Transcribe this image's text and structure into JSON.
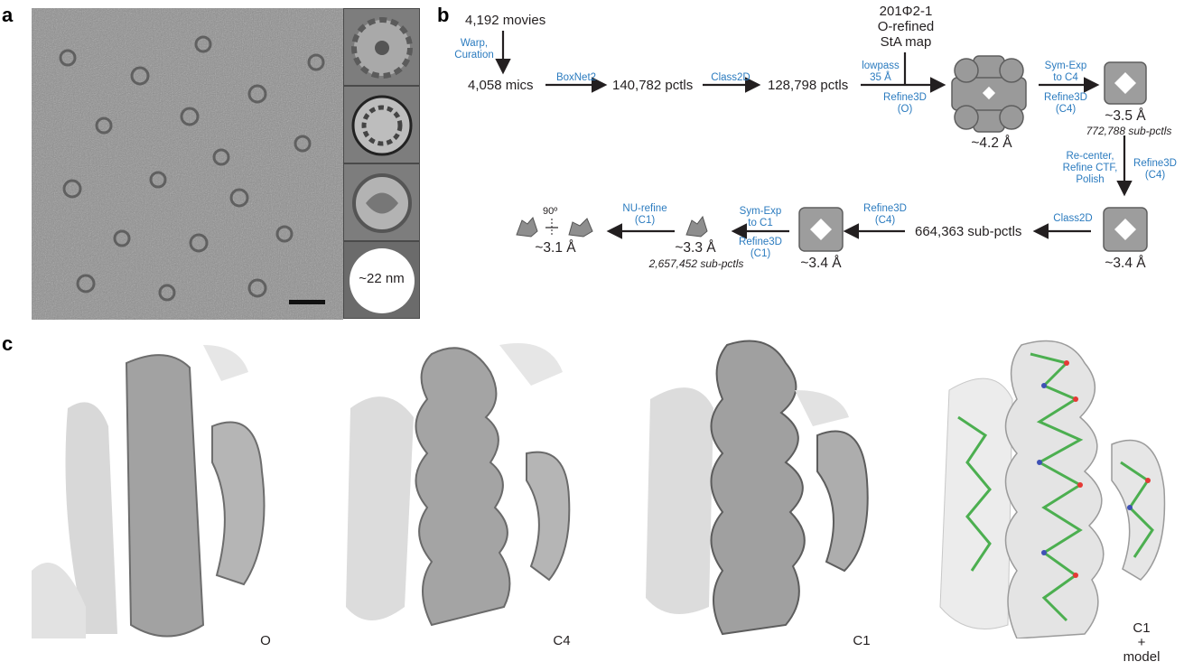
{
  "panels": {
    "a": "a",
    "b": "b",
    "c": "c"
  },
  "panel_a": {
    "circle_label": "~22 nm"
  },
  "panel_b": {
    "nodes": {
      "movies": "4,192 movies",
      "mics": "4,058 mics",
      "pctls1": "140,782 pctls",
      "pctls2": "128,798 pctls",
      "map": [
        "201Φ2-1",
        "O-refined",
        "StA map"
      ],
      "subpctls": "664,363 sub-pctls"
    },
    "ops": {
      "warp": [
        "Warp,",
        "Curation"
      ],
      "boxnet": "BoxNet2",
      "class2d_1": "Class2D",
      "lowpass": [
        "lowpass",
        "35 Å"
      ],
      "refine_o": [
        "Refine3D",
        "(O)"
      ],
      "symexp_c4": [
        "Sym-Exp",
        "to C4"
      ],
      "refine_c4_a": [
        "Refine3D",
        "(C4)"
      ],
      "recenter": [
        "Re-center,",
        "Refine CTF,",
        "Polish"
      ],
      "refine_c4_b": [
        "Refine3D",
        "(C4)"
      ],
      "class2d_2": "Class2D",
      "refine_c4_c": [
        "Refine3D",
        "(C4)"
      ],
      "symexp_c1": [
        "Sym-Exp",
        "to C1"
      ],
      "refine_c1": [
        "Refine3D",
        "(C1)"
      ],
      "nurefine": [
        "NU-refine",
        "(C1)"
      ],
      "rotation": "90º"
    },
    "resolutions": {
      "o_map": "~4.2 Å",
      "c4_map1": "~3.5 Å",
      "c4_map2": "~3.4 Å",
      "c4_map3": "~3.4 Å",
      "c1_map": "~3.3 Å",
      "final": "~3.1 Å"
    },
    "subparticles": {
      "c4": "772,788 sub-pctls",
      "c1": "2,657,452 sub-pctls"
    }
  },
  "panel_c": {
    "labels": [
      "O",
      "C4",
      "C1",
      [
        "C1",
        "+",
        "model"
      ]
    ]
  },
  "colors": {
    "operation_text": "#2b7bbf",
    "micrograph_gray": "#8f8f8f",
    "density_gray": "#9a9a9a",
    "model_green": "#4caf50"
  }
}
